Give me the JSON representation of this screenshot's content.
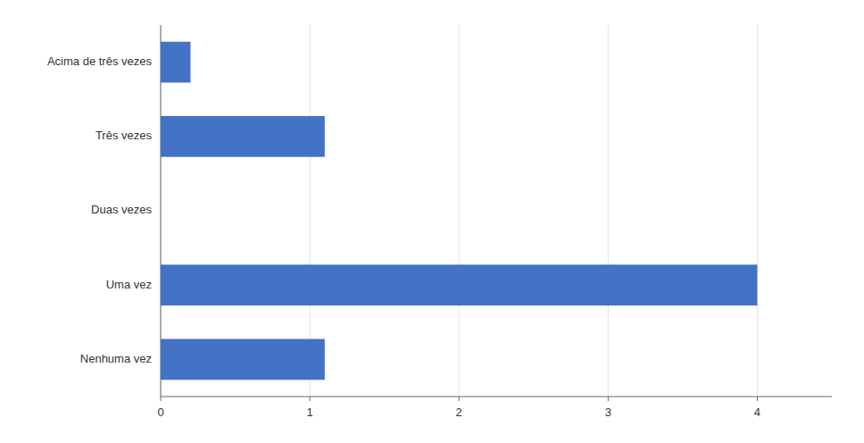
{
  "chart_data": {
    "type": "bar",
    "orientation": "horizontal",
    "categories": [
      "Nenhuma vez",
      "Uma vez",
      "Duas vezes",
      "Três vezes",
      "Acima de três vezes"
    ],
    "values": [
      1.1,
      4.0,
      0.0,
      1.1,
      0.2
    ],
    "color": "#4472C4",
    "xlim": [
      0,
      4.5
    ],
    "xticks": [
      0,
      1,
      2,
      3,
      4
    ],
    "grid": true
  }
}
